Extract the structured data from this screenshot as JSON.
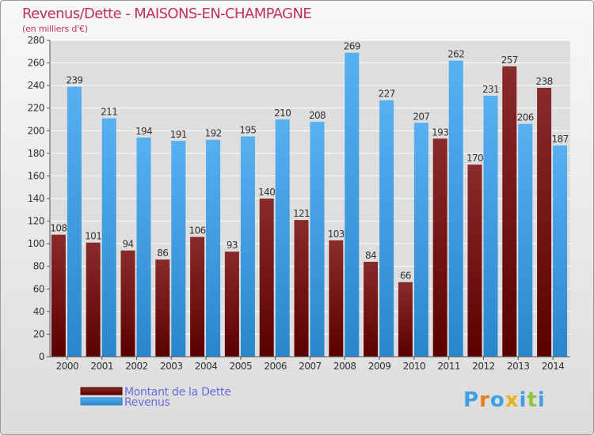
{
  "header": {
    "title": "Revenus/Dette - MAISONS-EN-CHAMPAGNE",
    "subtitle": "(en milliers d'€)"
  },
  "logo": {
    "text": "Proxiti"
  },
  "colors": {
    "title": "#c0325a",
    "dette": "#7a1414",
    "revenus": "#3f9ee6",
    "legend_text": "#6b6be0",
    "grid": "#ffffff"
  },
  "chart_data": {
    "type": "bar",
    "categories": [
      "2000",
      "2001",
      "2002",
      "2003",
      "2004",
      "2005",
      "2006",
      "2007",
      "2008",
      "2009",
      "2010",
      "2011",
      "2012",
      "2013",
      "2014"
    ],
    "series": [
      {
        "name": "Montant de la Dette",
        "values": [
          108,
          101,
          94,
          86,
          106,
          93,
          140,
          121,
          103,
          84,
          66,
          193,
          170,
          257,
          238
        ]
      },
      {
        "name": "Revenus",
        "values": [
          239,
          211,
          194,
          191,
          192,
          195,
          210,
          208,
          269,
          227,
          207,
          262,
          231,
          206,
          187
        ]
      }
    ],
    "ylim": [
      0,
      280
    ],
    "yticks": [
      0,
      20,
      40,
      60,
      80,
      100,
      120,
      140,
      160,
      180,
      200,
      220,
      240,
      260,
      280
    ],
    "grid": true,
    "legend_position": "bottom-left"
  }
}
